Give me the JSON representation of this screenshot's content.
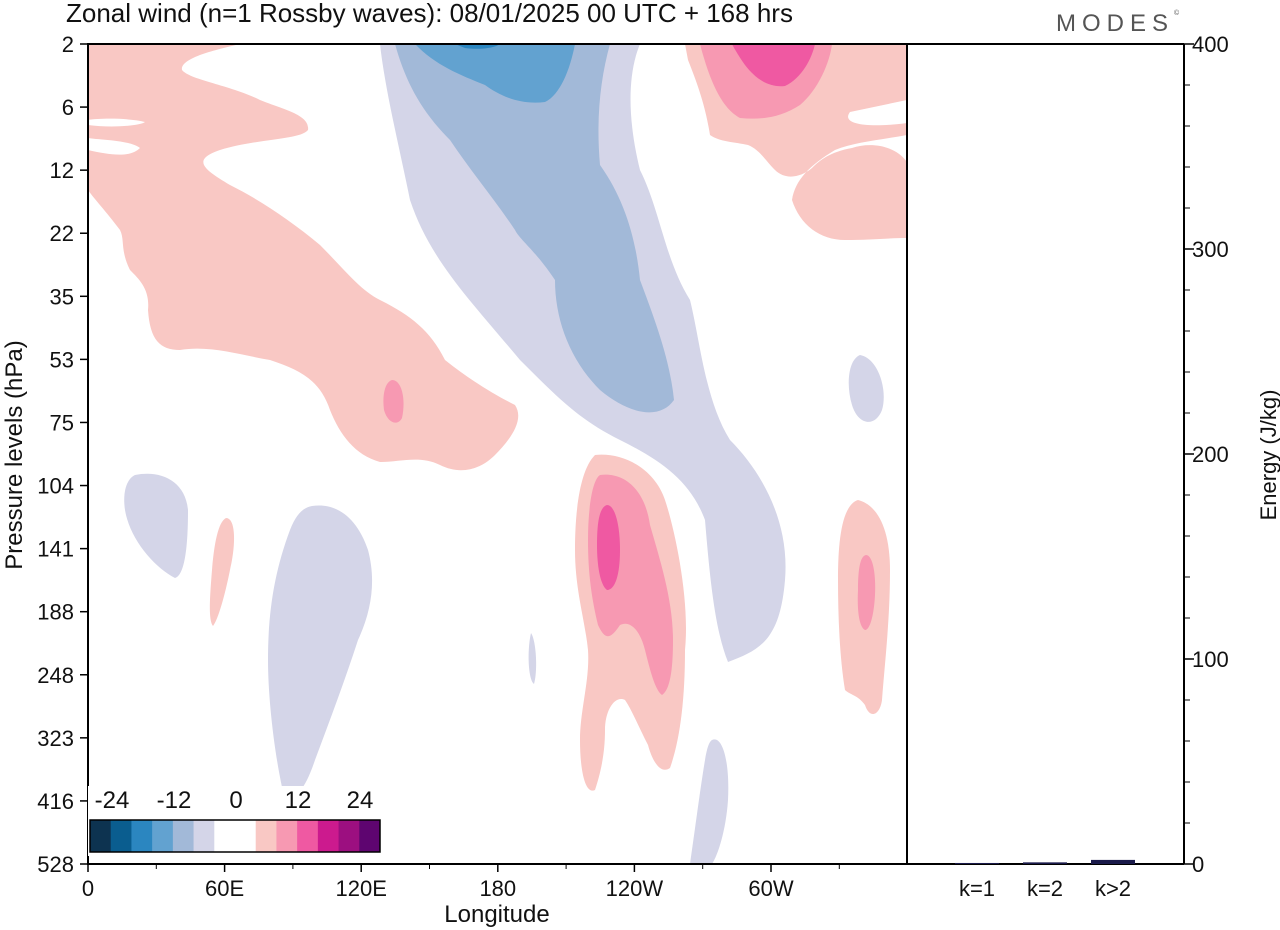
{
  "header": {
    "title": "Zonal wind (n=1 Rossby waves):  08/01/2025  00 UTC  + 168 hrs",
    "brand": "MODES"
  },
  "chart_data": [
    {
      "type": "heatmap",
      "title": "Zonal wind (n=1 Rossby waves):  08/01/2025  00 UTC  + 168 hrs",
      "xlabel": "Longitude",
      "ylabel": "Pressure levels (hPa)",
      "x_ticks": [
        "0",
        "60E",
        "120E",
        "180",
        "120W",
        "60W"
      ],
      "y_ticks": [
        "2",
        "6",
        "12",
        "22",
        "35",
        "53",
        "75",
        "104",
        "141",
        "188",
        "248",
        "323",
        "416",
        "528"
      ],
      "colorbar": {
        "labels": [
          "-24",
          "-12",
          "0",
          "12",
          "24"
        ],
        "colors": [
          "#0d3350",
          "#0a5d8f",
          "#2b86c0",
          "#62a2d0",
          "#a2b9d8",
          "#d4d5e8",
          "#ffffff",
          "#ffffff",
          "#f9c8c4",
          "#f799b2",
          "#ef59a2",
          "#cc1a8e",
          "#9c0f80",
          "#5e0570"
        ]
      },
      "contour_colors": {
        "pos1": "#f9c8c4",
        "pos2": "#f799b2",
        "pos3": "#ef59a2",
        "neg1": "#d4d5e8",
        "neg2": "#a2b9d8",
        "neg3": "#62a2d0",
        "neg4": "#2b86c0"
      }
    },
    {
      "type": "bar",
      "categories": [
        "k=1",
        "k=2",
        "k>2"
      ],
      "values": [
        0.5,
        0.8,
        2
      ],
      "ylabel": "Energy (J/kg)",
      "ylim": [
        0,
        400
      ],
      "y_ticks": [
        "0",
        "100",
        "200",
        "300",
        "400"
      ],
      "bar_color": "#1a1a4a"
    }
  ]
}
